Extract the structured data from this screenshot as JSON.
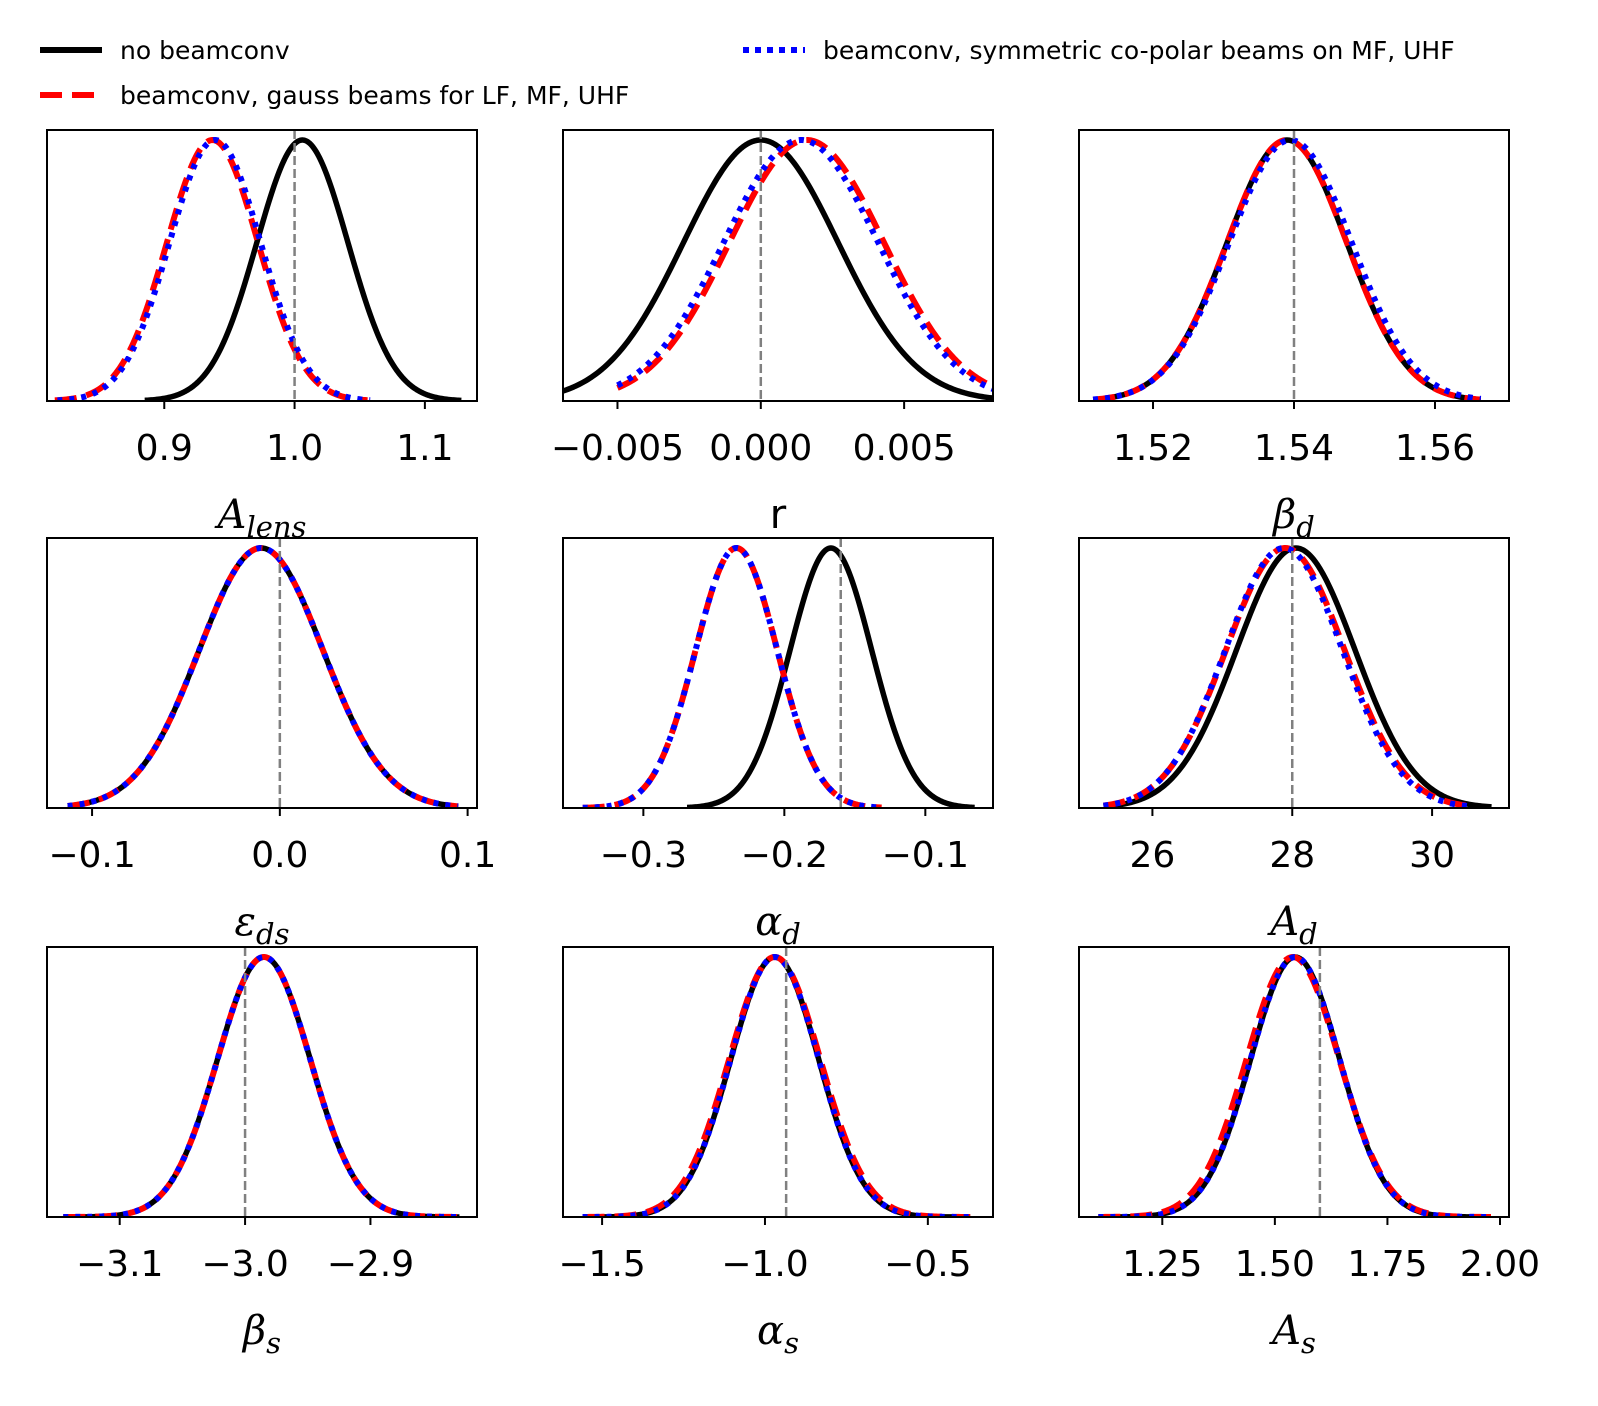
{
  "legend": [
    {
      "label": "no beamconv",
      "color": "#000000",
      "style": "solid"
    },
    {
      "label": "beamconv, gauss beams for LF, MF, UHF",
      "color": "#ff0000",
      "style": "dashed"
    },
    {
      "label": "beamconv, symmetric co-polar beams on MF, UHF",
      "color": "#0000ff",
      "style": "dotted"
    }
  ],
  "colors": {
    "reference_line": "#808080"
  },
  "chart_data": [
    {
      "type": "line",
      "title": "",
      "xlabel": {
        "base": "A",
        "sub": "lens",
        "italic": true
      },
      "ylabel": "",
      "xlim": [
        0.81,
        1.14
      ],
      "ticks": [
        0.9,
        1.0,
        1.1
      ],
      "tick_labels": [
        "0.9",
        "1.0",
        "1.1"
      ],
      "reference": 1.0,
      "series": [
        {
          "name": "no beamconv",
          "mean": 1.006,
          "sigma": 0.035,
          "x_range": [
            0.885,
            1.128
          ]
        },
        {
          "name": "beamconv, gauss beams for LF, MF, UHF",
          "mean": 0.937,
          "sigma": 0.035,
          "x_range": [
            0.816,
            1.056
          ]
        },
        {
          "name": "beamconv, symmetric co-polar beams on MF, UHF",
          "mean": 0.939,
          "sigma": 0.035,
          "x_range": [
            0.818,
            1.058
          ]
        }
      ]
    },
    {
      "type": "line",
      "title": "",
      "xlabel": {
        "base": "r",
        "sub": "",
        "italic": false
      },
      "ylabel": "",
      "xlim": [
        -0.0069,
        0.0081
      ],
      "ticks": [
        -0.005,
        0.0,
        0.005
      ],
      "tick_labels": [
        "−0.005",
        "0.000",
        "0.005"
      ],
      "reference": 0.0,
      "series": [
        {
          "name": "no beamconv",
          "mean": 0.0,
          "sigma": 0.0027,
          "x_range": [
            -0.0069,
            0.0081
          ]
        },
        {
          "name": "beamconv, gauss beams for LF, MF, UHF",
          "mean": 0.0016,
          "sigma": 0.0027,
          "x_range": [
            -0.005,
            0.0081
          ]
        },
        {
          "name": "beamconv, symmetric co-polar beams on MF, UHF",
          "mean": 0.0014,
          "sigma": 0.0027,
          "x_range": [
            -0.005,
            0.0081
          ]
        }
      ]
    },
    {
      "type": "line",
      "title": "",
      "xlabel": {
        "base": "β",
        "sub": "d",
        "italic": true
      },
      "ylabel": "",
      "xlim": [
        1.5095,
        1.5705
      ],
      "ticks": [
        1.52,
        1.54,
        1.56
      ],
      "tick_labels": [
        "1.52",
        "1.54",
        "1.56"
      ],
      "reference": 1.54,
      "series": [
        {
          "name": "no beamconv",
          "mean": 1.539,
          "sigma": 0.0085,
          "x_range": [
            1.5115,
            1.5665
          ]
        },
        {
          "name": "beamconv, gauss beams for LF, MF, UHF",
          "mean": 1.539,
          "sigma": 0.0085,
          "x_range": [
            1.5115,
            1.5665
          ]
        },
        {
          "name": "beamconv, symmetric co-polar beams on MF, UHF",
          "mean": 1.5395,
          "sigma": 0.0087,
          "x_range": [
            1.5115,
            1.5665
          ]
        }
      ]
    },
    {
      "type": "line",
      "title": "",
      "xlabel": {
        "base": "ε",
        "sub": "ds",
        "italic": true
      },
      "ylabel": "",
      "xlim": [
        -0.124,
        0.105
      ],
      "ticks": [
        -0.1,
        0.0,
        0.1
      ],
      "tick_labels": [
        "−0.1",
        "0.0",
        "0.1"
      ],
      "reference": 0.0,
      "series": [
        {
          "name": "no beamconv",
          "mean": -0.01,
          "sigma": 0.033,
          "x_range": [
            -0.113,
            0.095
          ]
        },
        {
          "name": "beamconv, gauss beams for LF, MF, UHF",
          "mean": -0.01,
          "sigma": 0.033,
          "x_range": [
            -0.113,
            0.095
          ]
        },
        {
          "name": "beamconv, symmetric co-polar beams on MF, UHF",
          "mean": -0.01,
          "sigma": 0.033,
          "x_range": [
            -0.113,
            0.095
          ]
        }
      ]
    },
    {
      "type": "line",
      "title": "",
      "xlabel": {
        "base": "α",
        "sub": "d",
        "italic": true
      },
      "ylabel": "",
      "xlim": [
        -0.357,
        -0.052
      ],
      "ticks": [
        -0.3,
        -0.2,
        -0.1
      ],
      "tick_labels": [
        "−0.3",
        "−0.2",
        "−0.1"
      ],
      "reference": -0.16,
      "series": [
        {
          "name": "no beamconv",
          "mean": -0.167,
          "sigma": 0.029,
          "x_range": [
            -0.269,
            -0.065
          ]
        },
        {
          "name": "beamconv, gauss beams for LF, MF, UHF",
          "mean": -0.234,
          "sigma": 0.029,
          "x_range": [
            -0.343,
            -0.131
          ]
        },
        {
          "name": "beamconv, symmetric co-polar beams on MF, UHF",
          "mean": -0.234,
          "sigma": 0.029,
          "x_range": [
            -0.343,
            -0.131
          ]
        }
      ]
    },
    {
      "type": "line",
      "title": "",
      "xlabel": {
        "base": "A",
        "sub": "d",
        "italic": true
      },
      "ylabel": "",
      "xlim": [
        24.95,
        31.1
      ],
      "ticks": [
        26,
        28,
        30
      ],
      "tick_labels": [
        "26",
        "28",
        "30"
      ],
      "reference": 28.0,
      "series": [
        {
          "name": "no beamconv",
          "mean": 28.05,
          "sigma": 0.85,
          "x_range": [
            25.3,
            30.85
          ]
        },
        {
          "name": "beamconv, gauss beams for LF, MF, UHF",
          "mean": 27.9,
          "sigma": 0.85,
          "x_range": [
            25.3,
            30.55
          ]
        },
        {
          "name": "beamconv, symmetric co-polar beams on MF, UHF",
          "mean": 27.88,
          "sigma": 0.84,
          "x_range": [
            25.3,
            30.55
          ]
        }
      ]
    },
    {
      "type": "line",
      "title": "",
      "xlabel": {
        "base": "β",
        "sub": "s",
        "italic": true
      },
      "ylabel": "",
      "xlim": [
        -3.158,
        -2.815
      ],
      "ticks": [
        -3.1,
        -3.0,
        -2.9
      ],
      "tick_labels": [
        "−3.1",
        "−3.0",
        "−2.9"
      ],
      "reference": -3.0,
      "series": [
        {
          "name": "no beamconv",
          "mean": -2.985,
          "sigma": 0.037,
          "x_range": [
            -3.145,
            -2.829
          ]
        },
        {
          "name": "beamconv, gauss beams for LF, MF, UHF",
          "mean": -2.985,
          "sigma": 0.037,
          "x_range": [
            -3.145,
            -2.829
          ]
        },
        {
          "name": "beamconv, symmetric co-polar beams on MF, UHF",
          "mean": -2.985,
          "sigma": 0.037,
          "x_range": [
            -3.145,
            -2.829
          ]
        }
      ]
    },
    {
      "type": "line",
      "title": "",
      "xlabel": {
        "base": "α",
        "sub": "s",
        "italic": true
      },
      "ylabel": "",
      "xlim": [
        -1.62,
        -0.3
      ],
      "ticks": [
        -1.5,
        -1.0,
        -0.5
      ],
      "tick_labels": [
        "−1.5",
        "−1.0",
        "−0.5"
      ],
      "reference": -0.935,
      "series": [
        {
          "name": "no beamconv",
          "mean": -0.97,
          "sigma": 0.135,
          "x_range": [
            -1.56,
            -0.37
          ]
        },
        {
          "name": "beamconv, gauss beams for LF, MF, UHF",
          "mean": -0.97,
          "sigma": 0.14,
          "x_range": [
            -1.56,
            -0.37
          ]
        },
        {
          "name": "beamconv, symmetric co-polar beams on MF, UHF",
          "mean": -0.97,
          "sigma": 0.135,
          "x_range": [
            -1.56,
            -0.37
          ]
        }
      ]
    },
    {
      "type": "line",
      "title": "",
      "xlabel": {
        "base": "A",
        "sub": "s",
        "italic": true
      },
      "ylabel": "",
      "xlim": [
        1.065,
        2.02
      ],
      "ticks": [
        1.25,
        1.5,
        1.75,
        2.0
      ],
      "tick_labels": [
        "1.25",
        "1.50",
        "1.75",
        "2.00"
      ],
      "reference": 1.6,
      "series": [
        {
          "name": "no beamconv",
          "mean": 1.545,
          "sigma": 0.099,
          "x_range": [
            1.108,
            1.98
          ]
        },
        {
          "name": "beamconv, gauss beams for LF, MF, UHF",
          "mean": 1.54,
          "sigma": 0.103,
          "x_range": [
            1.108,
            1.98
          ]
        },
        {
          "name": "beamconv, symmetric co-polar beams on MF, UHF",
          "mean": 1.545,
          "sigma": 0.099,
          "x_range": [
            1.108,
            1.98
          ]
        }
      ]
    }
  ]
}
